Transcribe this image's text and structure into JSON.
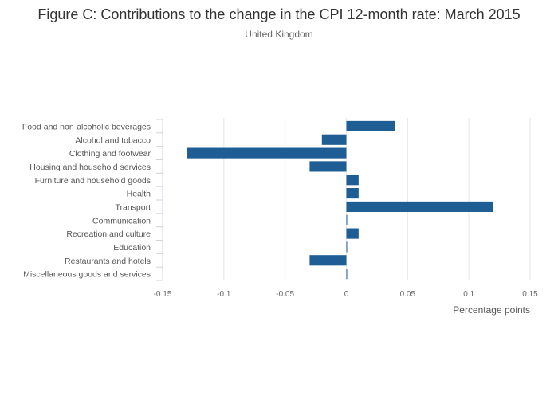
{
  "chart_data": {
    "type": "bar",
    "orientation": "horizontal",
    "title": "Figure C: Contributions to the change in the CPI 12-month rate: March 2015",
    "subtitle": "United Kingdom",
    "xlabel": "Percentage points",
    "ylabel": "",
    "xlim": [
      -0.15,
      0.15
    ],
    "xticks": [
      -0.15,
      -0.1,
      -0.05,
      0,
      0.05,
      0.1,
      0.15
    ],
    "xtick_labels": [
      "-0.15",
      "-0.1",
      "-0.05",
      "0",
      "0.05",
      "0.1",
      "0.15"
    ],
    "grid": true,
    "bar_color": "#1f5e94",
    "categories": [
      "Food and non-alcoholic beverages",
      "Alcohol and tobacco",
      "Clothing and footwear",
      "Housing and household services",
      "Furniture and household goods",
      "Health",
      "Transport",
      "Communication",
      "Recreation and culture",
      "Education",
      "Restaurants and hotels",
      "Miscellaneous goods and services"
    ],
    "values": [
      0.04,
      -0.02,
      -0.13,
      -0.03,
      0.01,
      0.01,
      0.12,
      0.0,
      0.01,
      0.0,
      -0.03,
      0.0
    ]
  }
}
